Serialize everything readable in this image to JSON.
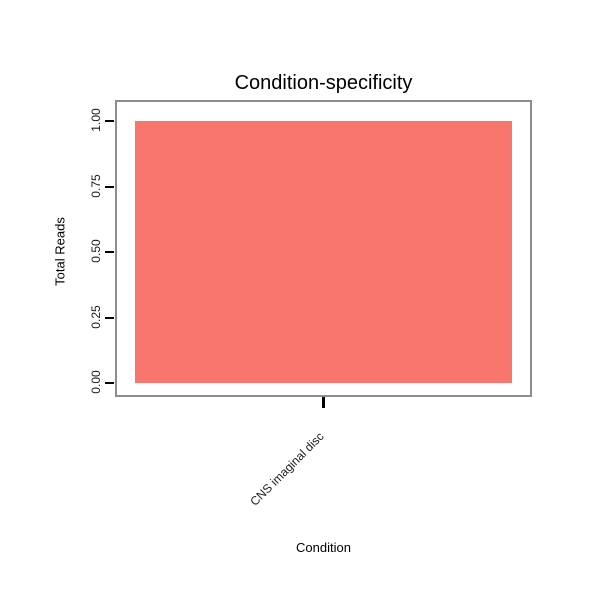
{
  "chart_data": {
    "type": "bar",
    "title": "Condition-specificity",
    "xlabel": "Condition",
    "ylabel": "Total Reads",
    "categories": [
      "CNS imaginal disc"
    ],
    "values": [
      1.0
    ],
    "ylim": [
      0,
      1.0
    ],
    "yticks": [
      "0.00",
      "0.25",
      "0.50",
      "0.75",
      "1.00"
    ],
    "legend": "none",
    "grid": "off",
    "colors": {
      "bar_fill": "#F8766D",
      "panel_border": "#8c8c8c",
      "tick": "#000000",
      "text": "#1a1a1a"
    }
  }
}
